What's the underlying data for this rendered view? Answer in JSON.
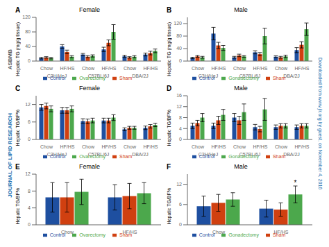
{
  "chart_data": [
    {
      "type": "bar",
      "title": "Female",
      "y_label": "Hepatic TG (mg/g tissue)",
      "categories": [
        "Chow",
        "HF/HS",
        "Chow",
        "HF/HS",
        "Chow",
        "HF/HS"
      ],
      "category_groups": [
        "C3H/HeJ",
        "C57BL/6J",
        "DBA/2J"
      ],
      "series": [
        {
          "name": "Control",
          "color": "#1e4fa0",
          "values": [
            8,
            40,
            18,
            32,
            13,
            18
          ],
          "errors": [
            2,
            5,
            3,
            6,
            3,
            4
          ]
        },
        {
          "name": "Sham",
          "color": "#d04010",
          "values": [
            10,
            25,
            12,
            50,
            10,
            22
          ],
          "errors": [
            2,
            5,
            3,
            8,
            2,
            5
          ]
        },
        {
          "name": "Ovarectomy",
          "color": "#4ca84c",
          "values": [
            8,
            12,
            14,
            80,
            12,
            28
          ],
          "errors": [
            2,
            3,
            3,
            20,
            3,
            5
          ]
        }
      ],
      "ylim": [
        0,
        120
      ],
      "yticks": [
        0,
        40,
        80,
        120
      ],
      "grid": false,
      "legend": "bottom",
      "annotations": [
        {
          "text": "A"
        }
      ]
    },
    {
      "type": "bar",
      "title": "Male",
      "y_label": "Hepatic TG (mg/g tissue)",
      "categories": [
        "Chow",
        "HF/HS",
        "Chow",
        "HF/HS",
        "Chow",
        "HF/HS"
      ],
      "category_groups": [
        "C3H/HeJ",
        "C57BL/6J",
        "DBA/2J"
      ],
      "series": [
        {
          "name": "Control",
          "color": "#1e4fa0",
          "values": [
            10,
            88,
            12,
            28,
            14,
            35
          ],
          "errors": [
            2,
            20,
            3,
            5,
            3,
            8
          ]
        },
        {
          "name": "Sham",
          "color": "#d04010",
          "values": [
            15,
            50,
            18,
            22,
            12,
            52
          ],
          "errors": [
            3,
            10,
            4,
            5,
            3,
            10
          ]
        },
        {
          "name": "Gonadectomy",
          "color": "#4ca84c",
          "values": [
            12,
            42,
            15,
            80,
            15,
            102
          ],
          "errors": [
            3,
            8,
            3,
            25,
            4,
            20
          ]
        }
      ],
      "ylim": [
        0,
        140
      ],
      "yticks": [
        0,
        40,
        80,
        120
      ],
      "grid": false,
      "legend": "bottom",
      "annotations": [
        {
          "text": "B"
        }
      ]
    },
    {
      "type": "bar",
      "title": "Female",
      "y_label": "Hepatic TG/BF%",
      "categories": [
        "Chow",
        "HF/HS",
        "Chow",
        "HF/HS",
        "Chow",
        "HF/HS"
      ],
      "category_groups": [
        "C3H/HeJ",
        "C57BL/6J",
        "DBA/2J"
      ],
      "series": [
        {
          "name": "Control",
          "color": "#1e4fa0",
          "values": [
            11,
            10,
            6.3,
            6.5,
            3.5,
            4.0
          ],
          "errors": [
            1,
            1,
            0.8,
            0.8,
            0.5,
            0.6
          ]
        },
        {
          "name": "Sham",
          "color": "#d04010",
          "values": [
            11.5,
            10,
            6.2,
            6.5,
            4.0,
            4.5
          ],
          "errors": [
            1,
            1,
            0.8,
            0.8,
            0.5,
            0.6
          ]
        },
        {
          "name": "Ovarectomy",
          "color": "#4ca84c",
          "values": [
            10.5,
            10.5,
            6.5,
            7.5,
            4.0,
            5.0
          ],
          "errors": [
            1,
            1,
            0.8,
            1,
            0.5,
            0.6
          ]
        }
      ],
      "ylim": [
        0,
        15
      ],
      "yticks": [
        0,
        6,
        12
      ],
      "grid": false,
      "legend": "bottom",
      "annotations": [
        {
          "text": "C"
        }
      ]
    },
    {
      "type": "bar",
      "title": "Male",
      "y_label": "Hepatic TG/BF%",
      "categories": [
        "Chow",
        "HF/HS",
        "Chow",
        "HF/HS",
        "Chow",
        "HF/HS"
      ],
      "category_groups": [
        "C3H/HeJ",
        "C57BL/6J",
        "DBA/2J"
      ],
      "series": [
        {
          "name": "Control",
          "color": "#1e4fa0",
          "values": [
            5,
            5,
            8,
            4.5,
            4.5,
            4.5
          ],
          "errors": [
            1,
            1,
            1.5,
            1,
            0.8,
            0.8
          ]
        },
        {
          "name": "Sham",
          "color": "#d04010",
          "values": [
            6,
            7,
            7,
            3.8,
            5,
            5
          ],
          "errors": [
            1,
            1.5,
            1.5,
            1,
            0.8,
            0.8
          ]
        },
        {
          "name": "Gonadectomy",
          "color": "#4ca84c",
          "values": [
            8,
            9,
            10,
            11,
            5,
            5
          ],
          "errors": [
            1.5,
            2,
            3,
            4,
            0.8,
            0.8
          ]
        }
      ],
      "ylim": [
        0,
        16
      ],
      "yticks": [
        0,
        4,
        8,
        12,
        16
      ],
      "grid": false,
      "legend": "bottom",
      "annotations": [
        {
          "text": "D"
        }
      ]
    },
    {
      "type": "bar",
      "title": "Female",
      "y_label": "Hepatic TG/BF%",
      "categories": [
        "Chow",
        "HF/HS"
      ],
      "series": [
        {
          "name": "Control",
          "color": "#1e4fa0",
          "values": [
            6.5,
            6.5
          ],
          "errors": [
            3.5,
            3.0
          ]
        },
        {
          "name": "Sham",
          "color": "#d04010",
          "values": [
            6.5,
            6.8
          ],
          "errors": [
            3.5,
            3.0
          ]
        },
        {
          "name": "Ovarectomy",
          "color": "#4ca84c",
          "values": [
            7.8,
            7.5
          ],
          "errors": [
            3.0,
            2.5
          ]
        }
      ],
      "ylim": [
        0,
        12
      ],
      "yticks": [
        0,
        4,
        8,
        12
      ],
      "grid": false,
      "legend": "bottom",
      "annotations": [
        {
          "text": "E"
        }
      ]
    },
    {
      "type": "bar",
      "title": "Male",
      "y_label": "Hepatic TG/BF%",
      "categories": [
        "Chow",
        "HF/HS"
      ],
      "series": [
        {
          "name": "Control",
          "color": "#1e4fa0",
          "values": [
            5.5,
            4.8
          ],
          "errors": [
            3.0,
            2.5
          ]
        },
        {
          "name": "Sham",
          "color": "#d04010",
          "values": [
            6.5,
            4.5
          ],
          "errors": [
            2.5,
            2.0
          ]
        },
        {
          "name": "Gonadectomy",
          "color": "#4ca84c",
          "values": [
            7.5,
            9.0
          ],
          "errors": [
            2.0,
            2.5
          ]
        }
      ],
      "ylim": [
        0,
        15
      ],
      "yticks": [
        0,
        6,
        12
      ],
      "grid": false,
      "legend": "bottom",
      "annotations": [
        {
          "text": "F"
        },
        {
          "text": "*",
          "category": "HF/HS",
          "series": "Gonadectomy"
        }
      ]
    }
  ],
  "annotations": [
    {
      "text": "ASBMB",
      "color": "#555555"
    },
    {
      "text": "JOURNAL OF LIPID RESEARCH",
      "color": "#1a6faf"
    },
    {
      "text": "Downloaded from www.jlr.org by guest, on November 4, 2016",
      "color": "#1a6faf"
    }
  ]
}
